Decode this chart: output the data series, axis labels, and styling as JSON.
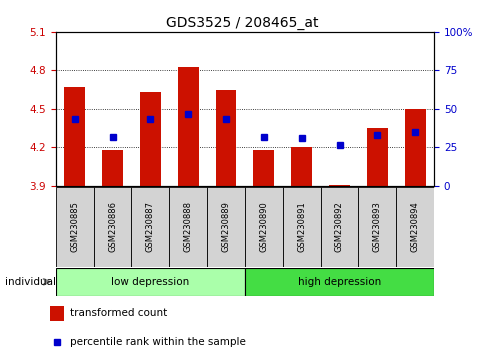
{
  "title": "GDS3525 / 208465_at",
  "samples": [
    "GSM230885",
    "GSM230886",
    "GSM230887",
    "GSM230888",
    "GSM230889",
    "GSM230890",
    "GSM230891",
    "GSM230892",
    "GSM230893",
    "GSM230894"
  ],
  "red_values": [
    4.67,
    4.18,
    4.63,
    4.83,
    4.65,
    4.18,
    4.2,
    3.91,
    4.35,
    4.5
  ],
  "blue_values": [
    4.42,
    4.28,
    4.42,
    4.46,
    4.42,
    4.28,
    4.27,
    4.22,
    4.3,
    4.32
  ],
  "baseline": 3.9,
  "ylim": [
    3.9,
    5.1
  ],
  "yticks_left": [
    3.9,
    4.2,
    4.5,
    4.8,
    5.1
  ],
  "yticks_right": [
    0,
    25,
    50,
    75,
    100
  ],
  "bar_color": "#CC1100",
  "dot_color": "#0000CC",
  "tick_color_left": "#CC0000",
  "tick_color_right": "#0000CC",
  "legend_red_label": "transformed count",
  "legend_blue_label": "percentile rank within the sample",
  "individual_label": "individual",
  "sample_box_color": "#D3D3D3",
  "group1_color": "#AAFFAA",
  "group2_color": "#44DD44",
  "group1_label": "low depression",
  "group2_label": "high depression",
  "grid_dotted_vals": [
    4.2,
    4.5,
    4.8
  ],
  "title_fontsize": 10
}
